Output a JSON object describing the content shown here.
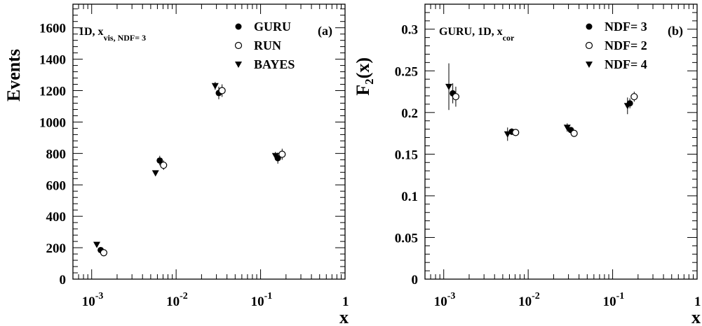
{
  "chart_data": [
    {
      "type": "scatter",
      "panel_label": "(a)",
      "annotation": {
        "main": "1D,  x",
        "sub": "vis,  NDF= 3"
      },
      "xlabel": "x",
      "ylabel": "Events",
      "xscale": "log",
      "xlim": [
        0.0006,
        1
      ],
      "ylim": [
        0,
        1750
      ],
      "x_tick_labels": [
        {
          "value": 0.001,
          "base": "10",
          "exp": "-3"
        },
        {
          "value": 0.01,
          "base": "10",
          "exp": "-2"
        },
        {
          "value": 0.1,
          "base": "10",
          "exp": "-1"
        },
        {
          "value": 1,
          "base": "1",
          "exp": ""
        }
      ],
      "y_ticks": [
        0,
        200,
        400,
        600,
        800,
        1000,
        1200,
        1400,
        1600
      ],
      "y_tick_labels": [
        "0",
        "200",
        "400",
        "600",
        "800",
        "1000",
        "1200",
        "1400",
        "1600"
      ],
      "legend_position": "top-right",
      "series": [
        {
          "name": "GURU",
          "marker": "filled-circle",
          "x": [
            0.00128,
            0.0064,
            0.032,
            0.16
          ],
          "y": [
            185,
            755,
            1185,
            770
          ],
          "err": [
            15,
            30,
            40,
            35
          ]
        },
        {
          "name": "RUN",
          "marker": "open-circle",
          "x": [
            0.00139,
            0.0071,
            0.035,
            0.18
          ],
          "y": [
            168,
            725,
            1200,
            795
          ],
          "err": [
            15,
            30,
            40,
            35
          ]
        },
        {
          "name": "BAYES",
          "marker": "filled-triangle-down",
          "x": [
            0.00115,
            0.0057,
            0.029,
            0.15
          ],
          "y": [
            220,
            675,
            1230,
            785
          ],
          "err": [
            10,
            15,
            25,
            25
          ]
        }
      ]
    },
    {
      "type": "scatter",
      "panel_label": "(b)",
      "annotation": {
        "main": "GURU,  1D,  x",
        "sub": "cor"
      },
      "xlabel": "x",
      "ylabel": "F2(x)",
      "ylabel_parts": {
        "main": "F",
        "sub": "2",
        "rest": "(x)"
      },
      "xscale": "log",
      "xlim": [
        0.0006,
        1
      ],
      "ylim": [
        0,
        0.33
      ],
      "x_tick_labels": [
        {
          "value": 0.001,
          "base": "10",
          "exp": "-3"
        },
        {
          "value": 0.01,
          "base": "10",
          "exp": "-2"
        },
        {
          "value": 0.1,
          "base": "10",
          "exp": "-1"
        },
        {
          "value": 1,
          "base": "1",
          "exp": ""
        }
      ],
      "y_ticks": [
        0,
        0.05,
        0.1,
        0.15,
        0.2,
        0.25,
        0.3
      ],
      "y_tick_labels": [
        "0",
        "0.05",
        "0.1",
        "0.15",
        "0.2",
        "0.25",
        "0.3"
      ],
      "legend_position": "top-right",
      "series": [
        {
          "name": "NDF= 3",
          "marker": "filled-circle",
          "x": [
            0.00128,
            0.0064,
            0.032,
            0.16
          ],
          "y": [
            0.223,
            0.177,
            0.179,
            0.211
          ],
          "err": [
            0.012,
            0.004,
            0.003,
            0.006
          ]
        },
        {
          "name": "NDF= 2",
          "marker": "open-circle",
          "x": [
            0.00139,
            0.0071,
            0.035,
            0.18
          ],
          "y": [
            0.219,
            0.176,
            0.175,
            0.219
          ],
          "err": [
            0.012,
            0.004,
            0.003,
            0.006
          ]
        },
        {
          "name": "NDF= 4",
          "marker": "filled-triangle-down",
          "x": [
            0.00115,
            0.0057,
            0.029,
            0.15
          ],
          "y": [
            0.231,
            0.174,
            0.182,
            0.208
          ],
          "err": [
            0.028,
            0.008,
            0.005,
            0.01
          ]
        }
      ]
    }
  ]
}
